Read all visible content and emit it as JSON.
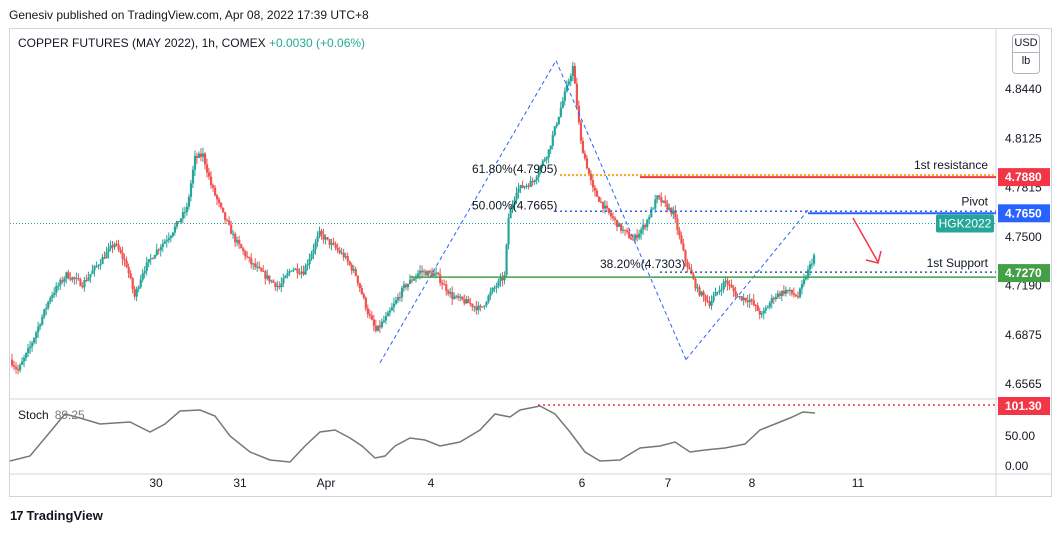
{
  "header": {
    "publisher": "Genesiv published on TradingView.com, Apr 08, 2022 17:39 UTC+8",
    "symbol": "COPPER FUTURES (MAY 2022), 1h, COMEX",
    "change": "+0.0030 (+0.06%)"
  },
  "currency": {
    "code": "USD",
    "unit": "lb"
  },
  "stoch": {
    "label": "Stoch",
    "value": "89.25"
  },
  "branding": {
    "logo": "TradingView"
  },
  "colors": {
    "up": "#26a69a",
    "down": "#ef5350",
    "resistance": "#f23645",
    "pivot": "#2962ff",
    "support": "#43a047",
    "fib": "#f5a623",
    "stoch": "#777777",
    "stoch_level": "#f23645",
    "harmonic": "#2962ff"
  },
  "chart_data": [
    {
      "type": "candlestick",
      "title": "",
      "price_axis": {
        "ticks": [
          "4.8440",
          "4.8125",
          "4.7815",
          "4.7500",
          "4.7190",
          "4.6875",
          "4.6565"
        ],
        "ylim": [
          4.645,
          4.875
        ]
      },
      "time_axis": {
        "ticks": [
          "30",
          "31",
          "Apr",
          "4",
          "6",
          "7",
          "8",
          "11"
        ]
      },
      "levels": [
        {
          "name": "1st resistance",
          "value": "4.7880"
        },
        {
          "name": "Pivot",
          "value": "4.7650"
        },
        {
          "name": "1st Support",
          "value": "4.7270"
        },
        {
          "name": "HGK2022",
          "value": "4.7580"
        }
      ],
      "fib_labels": [
        "61.80%(4.7905)",
        "50.00%(4.7665)",
        "38.20%(4.7303)"
      ],
      "grid": false
    },
    {
      "type": "line",
      "title": "Stoch",
      "y_axis": {
        "ticks": [
          "50.00",
          "0.00"
        ]
      },
      "level_label": "101.30"
    }
  ]
}
